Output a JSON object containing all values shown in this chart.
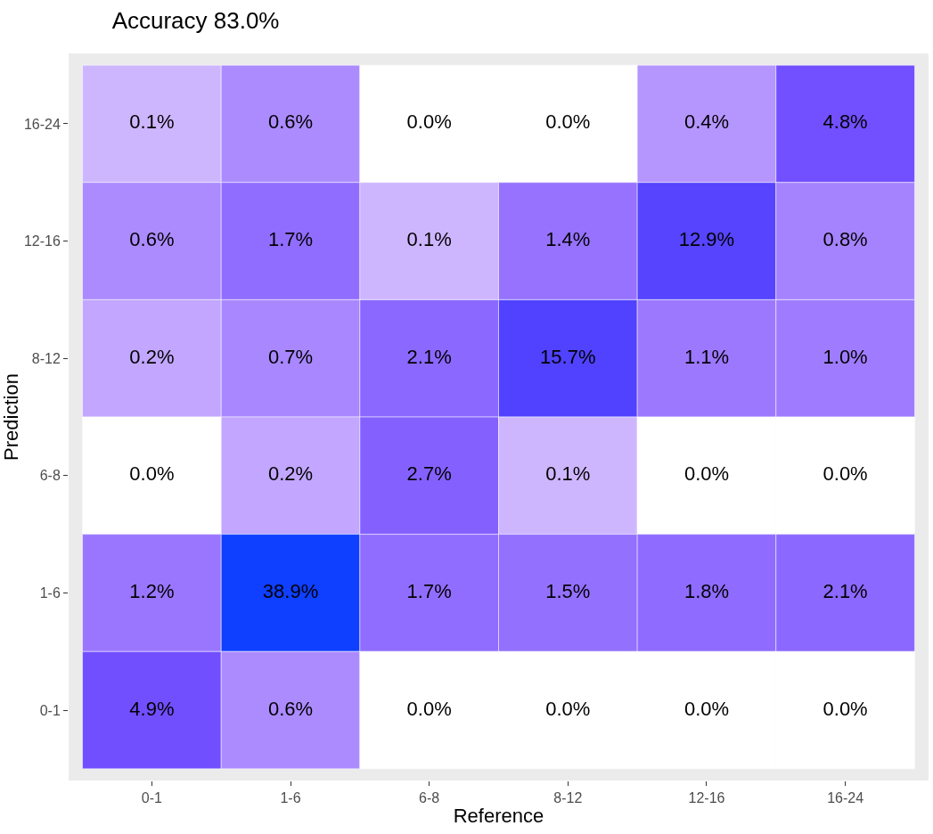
{
  "chart_data": {
    "type": "heatmap",
    "title": "Accuracy 83.0%",
    "xlabel": "Reference",
    "ylabel": "Prediction",
    "categories": [
      "0-1",
      "1-6",
      "6-8",
      "8-12",
      "12-16",
      "16-24"
    ],
    "y_categories": [
      "16-24",
      "12-16",
      "8-12",
      "6-8",
      "1-6",
      "0-1"
    ],
    "cells": [
      [
        0.1,
        0.6,
        0.0,
        0.0,
        0.4,
        4.8
      ],
      [
        0.6,
        1.7,
        0.1,
        1.4,
        12.9,
        0.8
      ],
      [
        0.2,
        0.7,
        2.1,
        15.7,
        1.1,
        1.0
      ],
      [
        0.0,
        0.2,
        2.7,
        0.1,
        0.0,
        0.0
      ],
      [
        1.2,
        38.9,
        1.7,
        1.5,
        1.8,
        2.1
      ],
      [
        4.9,
        0.6,
        0.0,
        0.0,
        0.0,
        0.0
      ]
    ],
    "cell_labels": [
      [
        "0.1%",
        "0.6%",
        "0.0%",
        "0.0%",
        "0.4%",
        "4.8%"
      ],
      [
        "0.6%",
        "1.7%",
        "0.1%",
        "1.4%",
        "12.9%",
        "0.8%"
      ],
      [
        "0.2%",
        "0.7%",
        "2.1%",
        "15.7%",
        "1.1%",
        "1.0%"
      ],
      [
        "0.0%",
        "0.2%",
        "2.7%",
        "0.1%",
        "0.0%",
        "0.0%"
      ],
      [
        "1.2%",
        "38.9%",
        "1.7%",
        "1.5%",
        "1.8%",
        "2.1%"
      ],
      [
        "4.9%",
        "0.6%",
        "0.0%",
        "0.0%",
        "0.0%",
        "0.0%"
      ]
    ]
  }
}
